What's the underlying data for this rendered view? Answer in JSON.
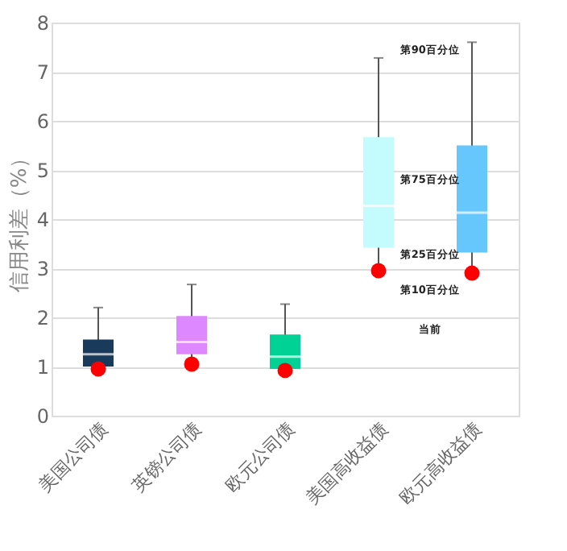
{
  "chart_data": {
    "type": "box",
    "ylabel": "信用利差（%）",
    "categories": [
      "美国公司债",
      "英镑公司债",
      "欧元公司债",
      "美国高收益债",
      "欧元高收益债"
    ],
    "boxes": [
      {
        "low": 0.88,
        "q1": 1.0,
        "median": 1.25,
        "q3": 1.55,
        "high": 2.2
      },
      {
        "low": 0.95,
        "q1": 1.25,
        "median": 1.5,
        "q3": 2.03,
        "high": 2.67
      },
      {
        "low": 0.88,
        "q1": 0.95,
        "median": 1.2,
        "q3": 1.65,
        "high": 2.27
      },
      {
        "low": 2.95,
        "q1": 3.42,
        "median": 4.27,
        "q3": 5.67,
        "high": 7.28
      },
      {
        "low": 2.9,
        "q1": 3.32,
        "median": 4.13,
        "q3": 5.5,
        "high": 7.6
      }
    ],
    "colors": [
      "#1a3a5c",
      "#dd88ff",
      "#00d195",
      "#c4fcfd",
      "#66c7fd"
    ],
    "series": [
      {
        "type": "scatter",
        "x": [
          "美国公司债",
          "英镑公司债",
          "欧元公司债",
          "美国高收益债",
          "欧元高收益债"
        ],
        "values": [
          0.95,
          1.05,
          0.92,
          2.95,
          2.9
        ],
        "color": "#ff0000",
        "marker": "circle"
      }
    ],
    "ylim": [
      0,
      8
    ],
    "yticks": [
      0,
      1,
      2,
      3,
      4,
      5,
      6,
      7,
      8
    ],
    "grid": "y",
    "annotations": [
      "第90百分位",
      "第75百分位",
      "第25百分位",
      "第10百分位",
      "当前"
    ]
  }
}
